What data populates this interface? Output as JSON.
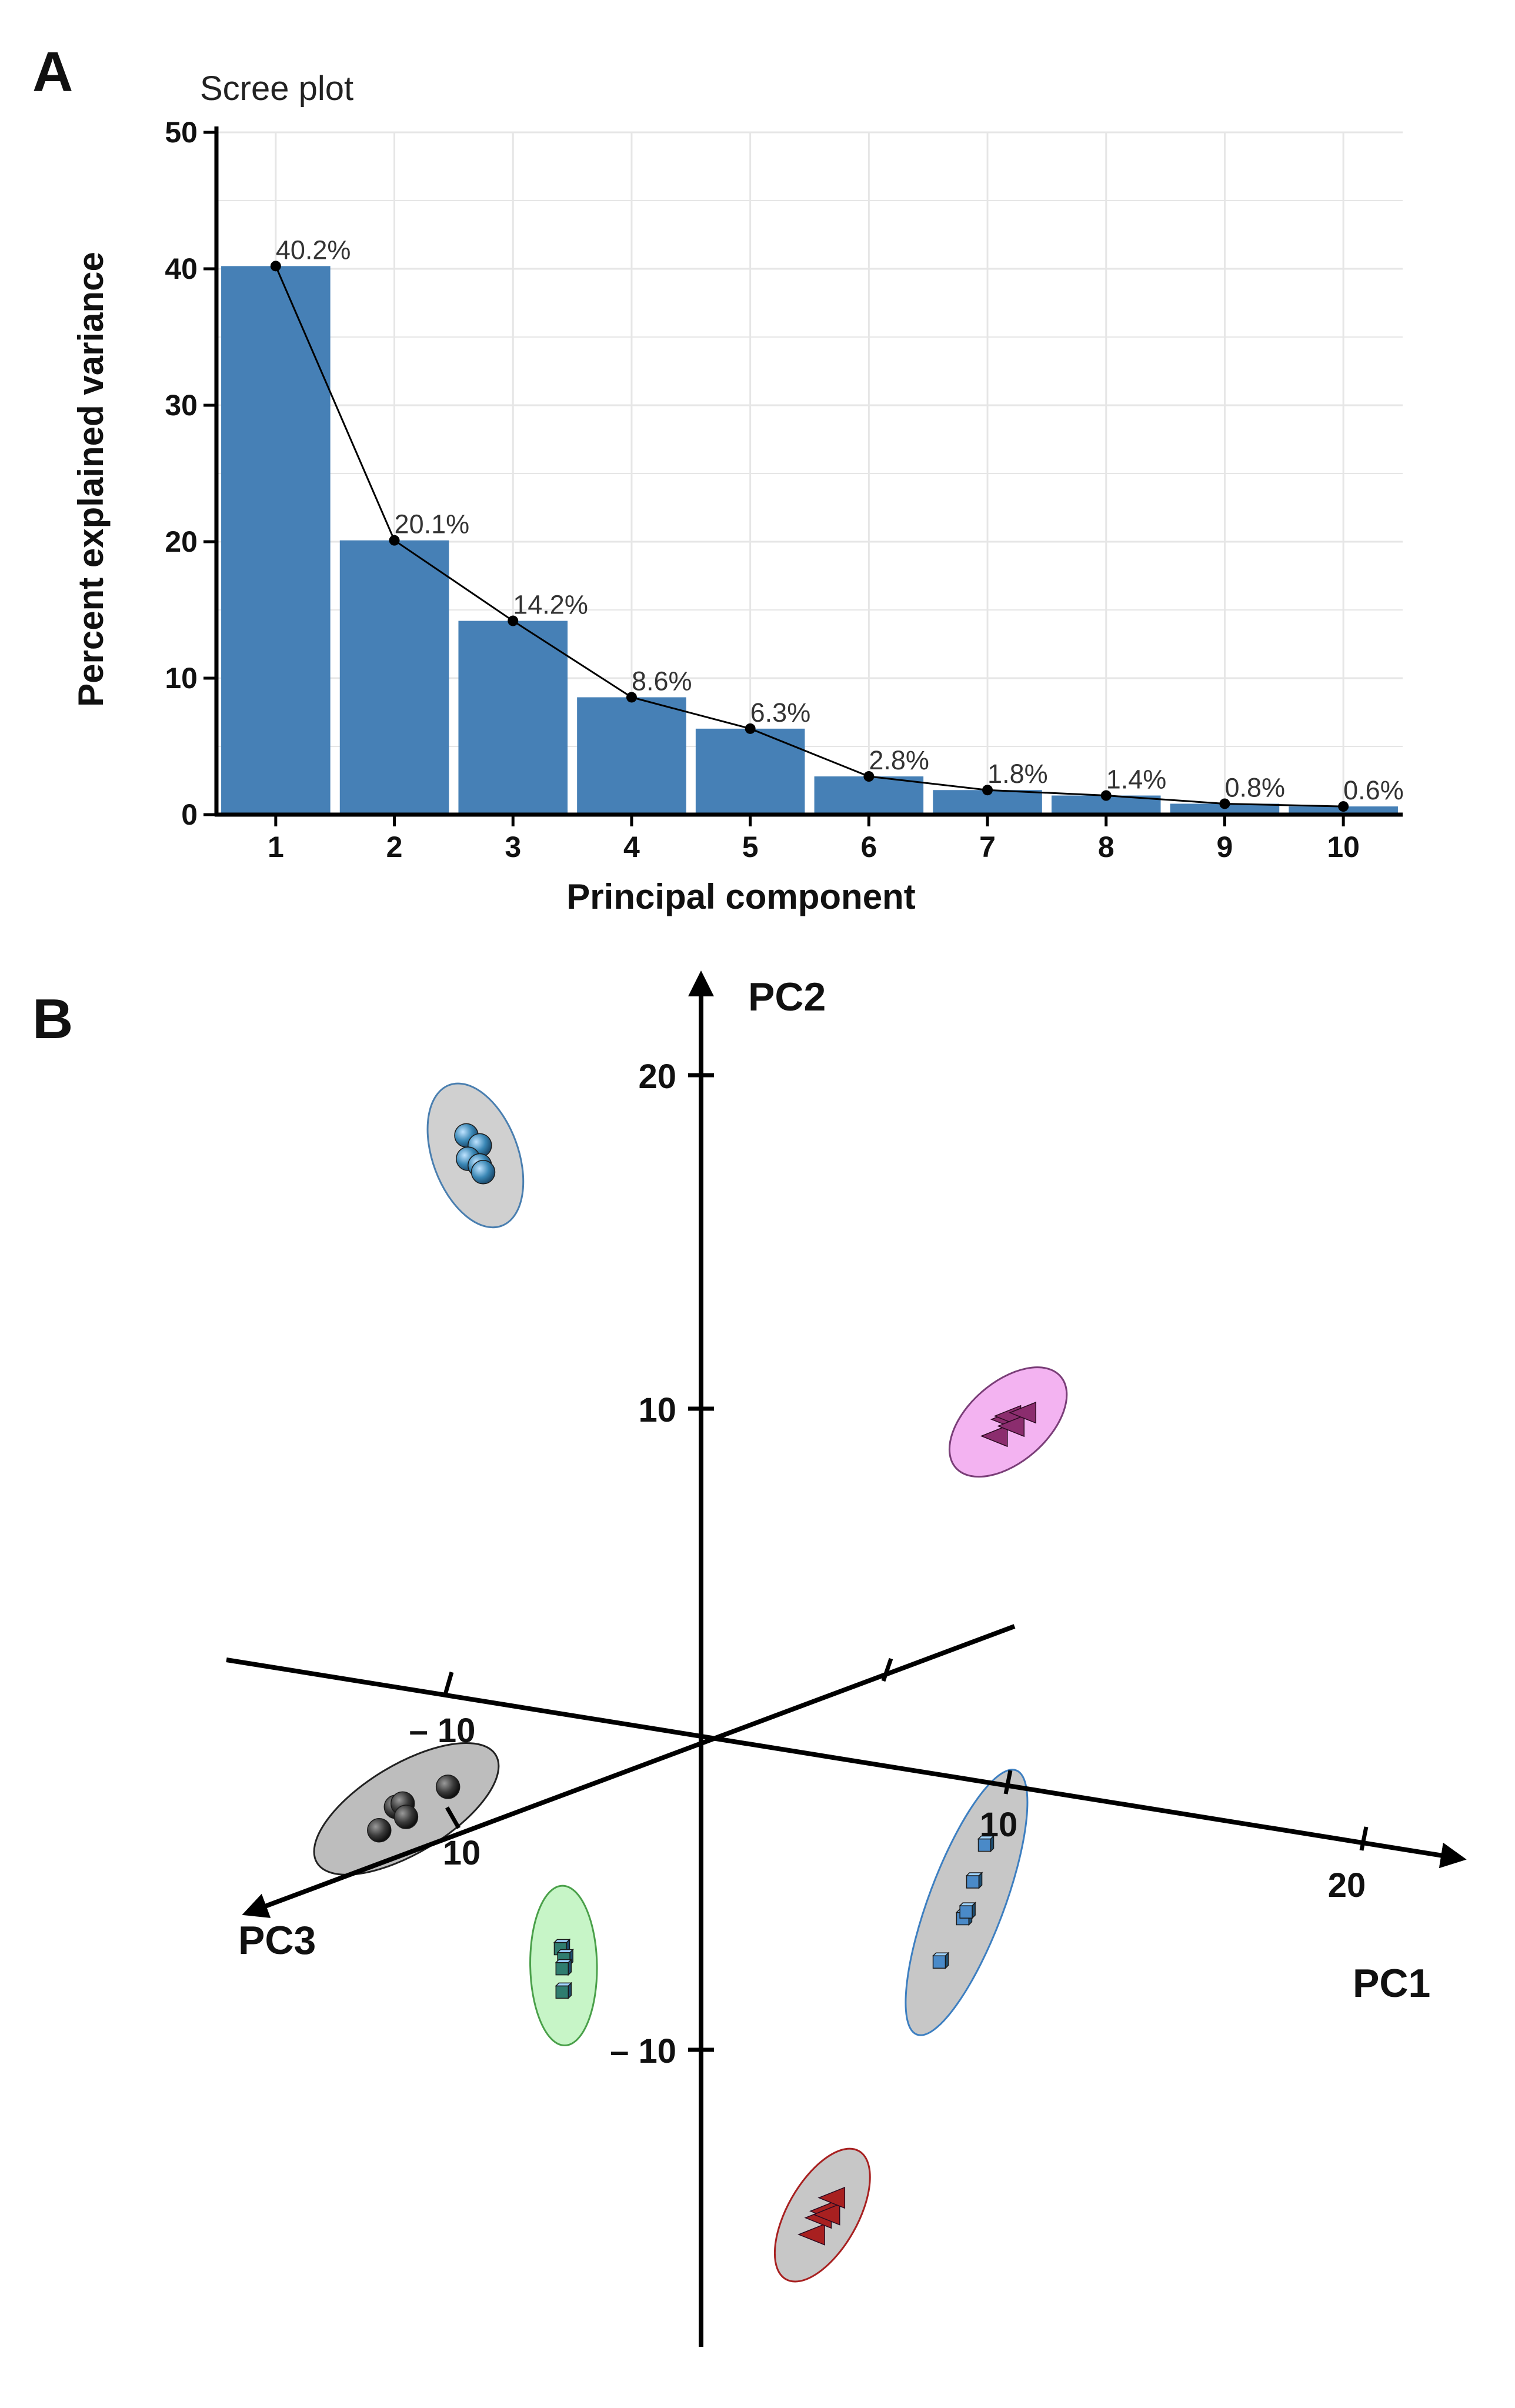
{
  "panels": {
    "a_letter": "A",
    "b_letter": "B"
  },
  "chart_data": [
    {
      "type": "bar",
      "title": "Scree plot",
      "xlabel": "Principal component",
      "ylabel": "Percent explained variance",
      "categories": [
        "1",
        "2",
        "3",
        "4",
        "5",
        "6",
        "7",
        "8",
        "9",
        "10"
      ],
      "values": [
        40.2,
        20.1,
        14.2,
        8.6,
        6.3,
        2.8,
        1.8,
        1.4,
        0.8,
        0.6
      ],
      "data_labels": [
        "40.2%",
        "20.1%",
        "14.2%",
        "8.6%",
        "6.3%",
        "2.8%",
        "1.8%",
        "1.4%",
        "0.8%",
        "0.6%"
      ],
      "ylim": [
        0,
        50
      ],
      "yticks": [
        "0",
        "10",
        "20",
        "30",
        "40",
        "50"
      ],
      "line_overlay": true,
      "grid": true,
      "colors": {
        "bar": "#4680b6",
        "line": "#000000",
        "grid": "#e6e6e6"
      }
    },
    {
      "type": "scatter",
      "dimensions": 3,
      "axes": {
        "pc1": "PC1",
        "pc2": "PC2",
        "pc3": "PC3"
      },
      "tick_labels": {
        "pc2_pos": "20",
        "pc2_mid": "10",
        "pc2_neg": "– 10",
        "pc1_10": "10",
        "pc1_20": "20",
        "pc3_neg": "– 10",
        "pc3_pos": "10"
      },
      "ranges": {
        "pc1": [
          -20,
          22
        ],
        "pc2": [
          -19,
          22
        ],
        "pc3": [
          -14,
          14
        ]
      },
      "groups": [
        {
          "marker": "sphere",
          "color": "#3a87b5",
          "ellipse_fill": "#d0d0d0",
          "ellipse_stroke": "#4a7fb0",
          "points": [
            [
              -14,
              17.6
            ],
            [
              -13.2,
              17.3
            ],
            [
              -13.9,
              16.9
            ],
            [
              -13.2,
              16.7
            ],
            [
              -13.0,
              16.5
            ]
          ]
        },
        {
          "marker": "triangle",
          "color": "#8b2d6e",
          "ellipse_fill": "#f3b3f1",
          "ellipse_stroke": "#7a3e78",
          "points": [
            [
              17.5,
              8.6
            ],
            [
              18.1,
              9.1
            ],
            [
              18.3,
              9.2
            ],
            [
              18.5,
              8.9
            ],
            [
              19.2,
              9.3
            ]
          ]
        },
        {
          "marker": "sphere",
          "color": "#3a3a3a",
          "ellipse_fill": "#bdbdbd",
          "ellipse_stroke": "#222222",
          "points": [
            [
              -19.2,
              -3.2
            ],
            [
              -18.2,
              -2.5
            ],
            [
              -17.8,
              -2.4
            ],
            [
              -17.6,
              -2.8
            ],
            [
              -15.1,
              -1.9
            ]
          ]
        },
        {
          "marker": "cube",
          "color": "#2f7d6f",
          "ellipse_fill": "#c7f5c7",
          "ellipse_stroke": "#4aa04a",
          "points": [
            [
              -8.3,
              -6.7
            ],
            [
              -8.1,
              -7.0
            ],
            [
              -8.2,
              -7.3
            ],
            [
              -8.2,
              -8.0
            ]
          ]
        },
        {
          "marker": "cube",
          "color": "#4a8ac8",
          "ellipse_fill": "#c7c7c7",
          "ellipse_stroke": "#3d7fc1",
          "points": [
            [
              14.3,
              -7.1
            ],
            [
              15.7,
              -5.8
            ],
            [
              15.9,
              -5.6
            ],
            [
              16.3,
              -4.7
            ],
            [
              17.0,
              -3.6
            ]
          ]
        },
        {
          "marker": "triangle",
          "color": "#a82020",
          "ellipse_fill": "#c7c7c7",
          "ellipse_stroke": "#a82020",
          "points": [
            [
              6.6,
              -15.3
            ],
            [
              7.0,
              -14.8
            ],
            [
              7.3,
              -14.6
            ],
            [
              7.5,
              -14.7
            ],
            [
              7.8,
              -14.2
            ]
          ]
        }
      ]
    }
  ]
}
